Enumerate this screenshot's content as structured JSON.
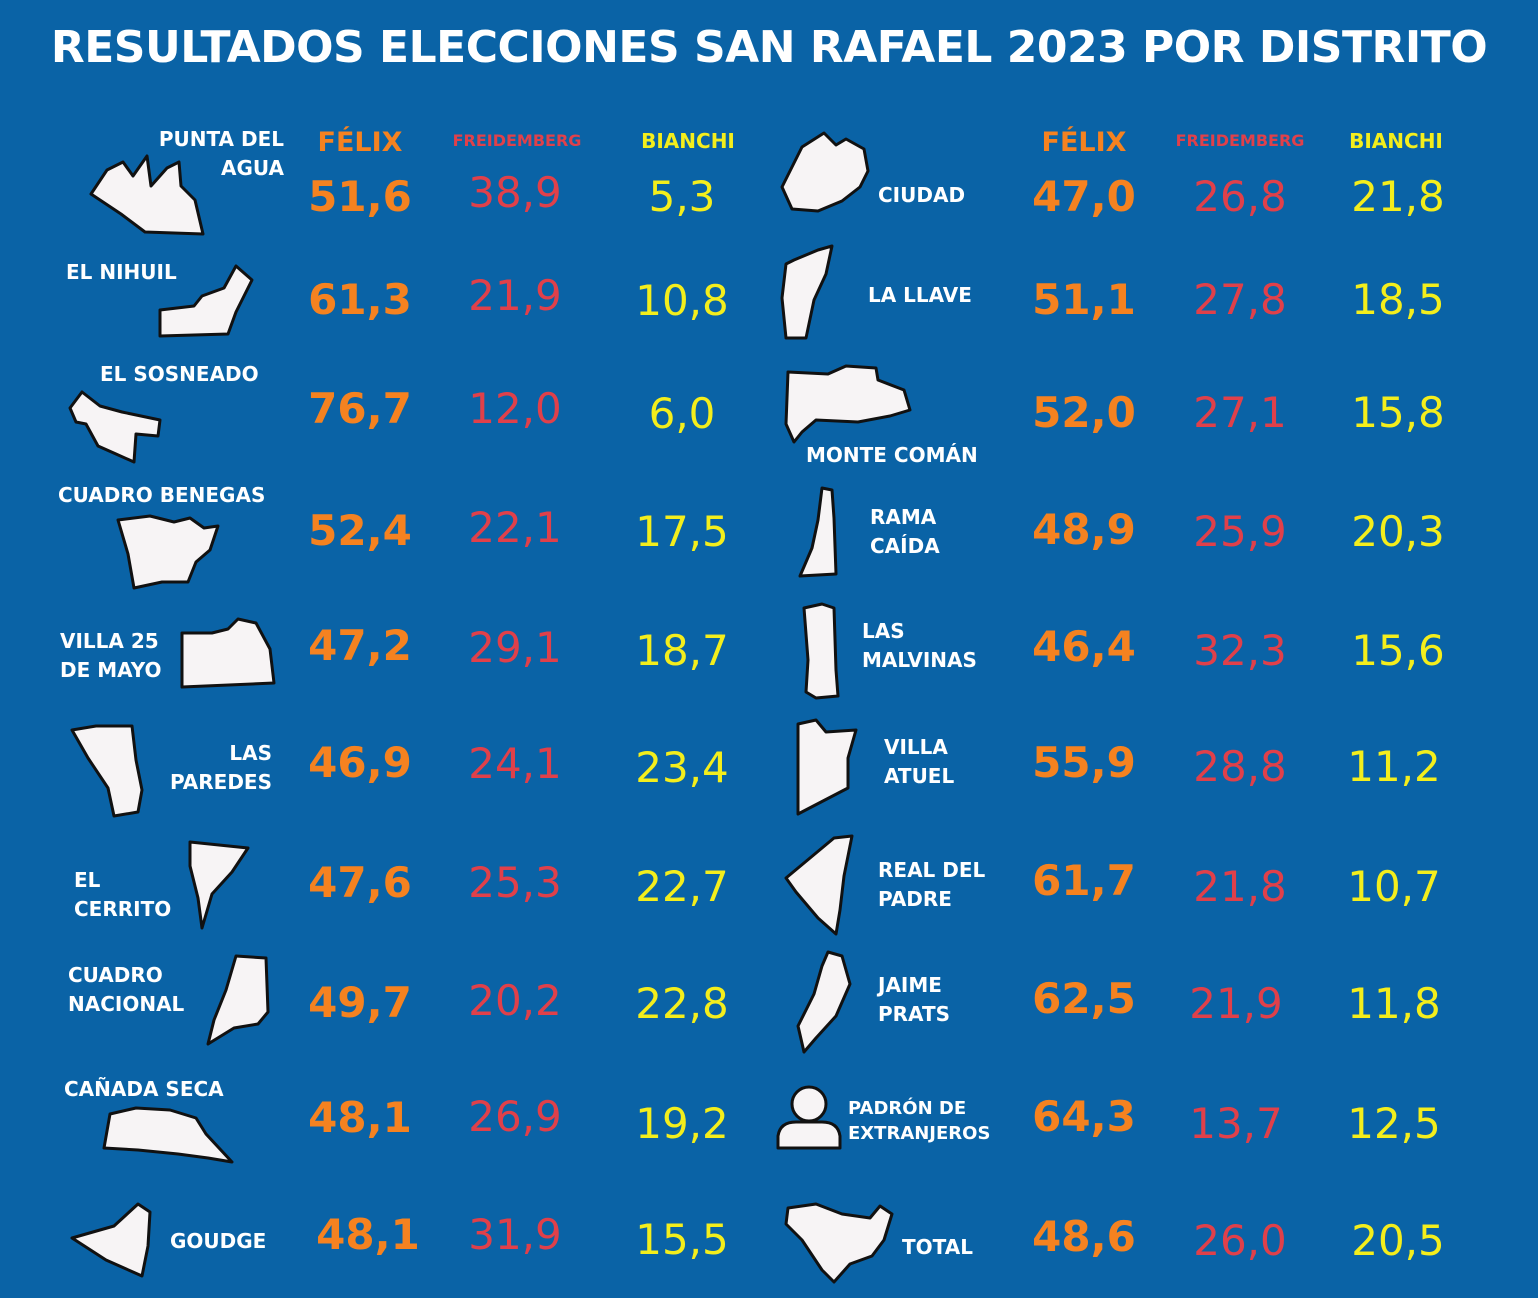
{
  "title": "RESULTADOS ELECCIONES SAN RAFAEL 2023 POR DISTRITO",
  "headers": {
    "felix": "FÉLIX",
    "freidemberg": "FREIDEMBERG",
    "bianchi": "BIANCHI"
  },
  "colors": {
    "background": "#0a63a6",
    "felix": "#f58220",
    "freidemberg": "#e0404a",
    "bianchi": "#f4ee1c",
    "text": "#ffffff"
  },
  "left": [
    {
      "name": [
        "PUNTA DEL",
        "AGUA"
      ],
      "felix": "51,6",
      "freidemberg": "38,9",
      "bianchi": "5,3"
    },
    {
      "name": [
        "EL NIHUIL"
      ],
      "felix": "61,3",
      "freidemberg": "21,9",
      "bianchi": "10,8"
    },
    {
      "name": [
        "EL SOSNEADO"
      ],
      "felix": "76,7",
      "freidemberg": "12,0",
      "bianchi": "6,0"
    },
    {
      "name": [
        "CUADRO BENEGAS"
      ],
      "felix": "52,4",
      "freidemberg": "22,1",
      "bianchi": "17,5"
    },
    {
      "name": [
        "VILLA 25",
        "DE MAYO"
      ],
      "felix": "47,2",
      "freidemberg": "29,1",
      "bianchi": "18,7"
    },
    {
      "name": [
        "LAS",
        "PAREDES"
      ],
      "felix": "46,9",
      "freidemberg": "24,1",
      "bianchi": "23,4"
    },
    {
      "name": [
        "EL",
        "CERRITO"
      ],
      "felix": "47,6",
      "freidemberg": "25,3",
      "bianchi": "22,7"
    },
    {
      "name": [
        "CUADRO",
        "NACIONAL"
      ],
      "felix": "49,7",
      "freidemberg": "20,2",
      "bianchi": "22,8"
    },
    {
      "name": [
        "CAÑADA SECA"
      ],
      "felix": "48,1",
      "freidemberg": "26,9",
      "bianchi": "19,2"
    },
    {
      "name": [
        "GOUDGE"
      ],
      "felix": "48,1",
      "freidemberg": "31,9",
      "bianchi": "15,5"
    }
  ],
  "right": [
    {
      "name": [
        "CIUDAD"
      ],
      "felix": "47,0",
      "freidemberg": "26,8",
      "bianchi": "21,8"
    },
    {
      "name": [
        "LA LLAVE"
      ],
      "felix": "51,1",
      "freidemberg": "27,8",
      "bianchi": "18,5"
    },
    {
      "name": [
        "MONTE COMÁN"
      ],
      "felix": "52,0",
      "freidemberg": "27,1",
      "bianchi": "15,8"
    },
    {
      "name": [
        "RAMA",
        "CAÍDA"
      ],
      "felix": "48,9",
      "freidemberg": "25,9",
      "bianchi": "20,3"
    },
    {
      "name": [
        "LAS",
        "MALVINAS"
      ],
      "felix": "46,4",
      "freidemberg": "32,3",
      "bianchi": "15,6"
    },
    {
      "name": [
        "VILLA",
        "ATUEL"
      ],
      "felix": "55,9",
      "freidemberg": "28,8",
      "bianchi": "11,2"
    },
    {
      "name": [
        "REAL DEL",
        "PADRE"
      ],
      "felix": "61,7",
      "freidemberg": "21,8",
      "bianchi": "10,7"
    },
    {
      "name": [
        "JAIME",
        "PRATS"
      ],
      "felix": "62,5",
      "freidemberg": "21,9",
      "bianchi": "11,8"
    },
    {
      "name": [
        "PADRÓN DE",
        "EXTRANJEROS"
      ],
      "felix": "64,3",
      "freidemberg": "13,7",
      "bianchi": "12,5"
    },
    {
      "name": [
        "TOTAL"
      ],
      "felix": "48,6",
      "freidemberg": "26,0",
      "bianchi": "20,5"
    }
  ]
}
